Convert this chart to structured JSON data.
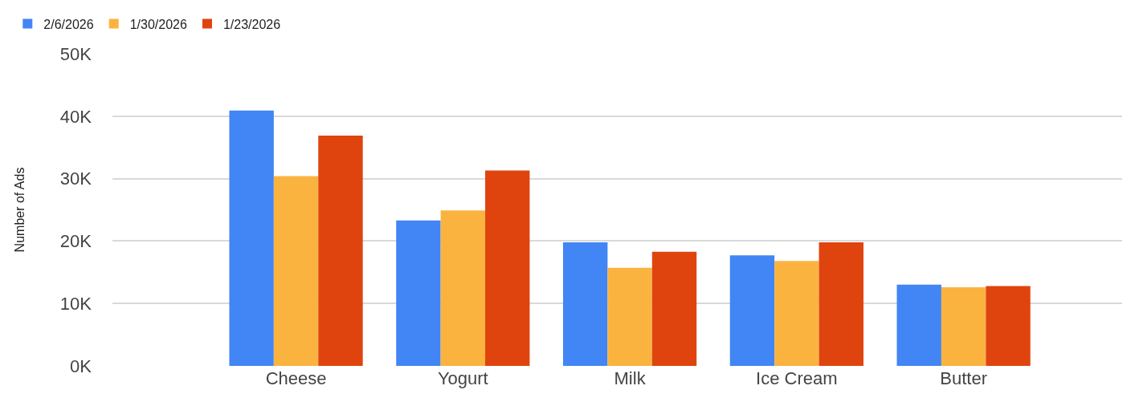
{
  "chart_data": {
    "type": "bar",
    "ylabel": "Number of Ads",
    "categories": [
      "Cheese",
      "Yogurt",
      "Milk",
      "Ice Cream",
      "Butter"
    ],
    "series": [
      {
        "name": "2/6/2026",
        "color": "#4285f4",
        "values": [
          40900,
          23300,
          19800,
          17700,
          13000
        ]
      },
      {
        "name": "1/30/2026",
        "color": "#fbb340",
        "values": [
          30400,
          24900,
          15700,
          16800,
          12600
        ]
      },
      {
        "name": "1/23/2026",
        "color": "#e0440e",
        "values": [
          36900,
          31300,
          18300,
          19800,
          12800
        ]
      }
    ],
    "ylim": [
      0,
      50000
    ],
    "yticks": [
      {
        "value": 0,
        "label": "0K"
      },
      {
        "value": 10000,
        "label": "10K"
      },
      {
        "value": 20000,
        "label": "20K"
      },
      {
        "value": 30000,
        "label": "30K"
      },
      {
        "value": 40000,
        "label": "40K"
      },
      {
        "value": 50000,
        "label": "50K"
      }
    ],
    "grid": "y",
    "legend": "top left"
  }
}
